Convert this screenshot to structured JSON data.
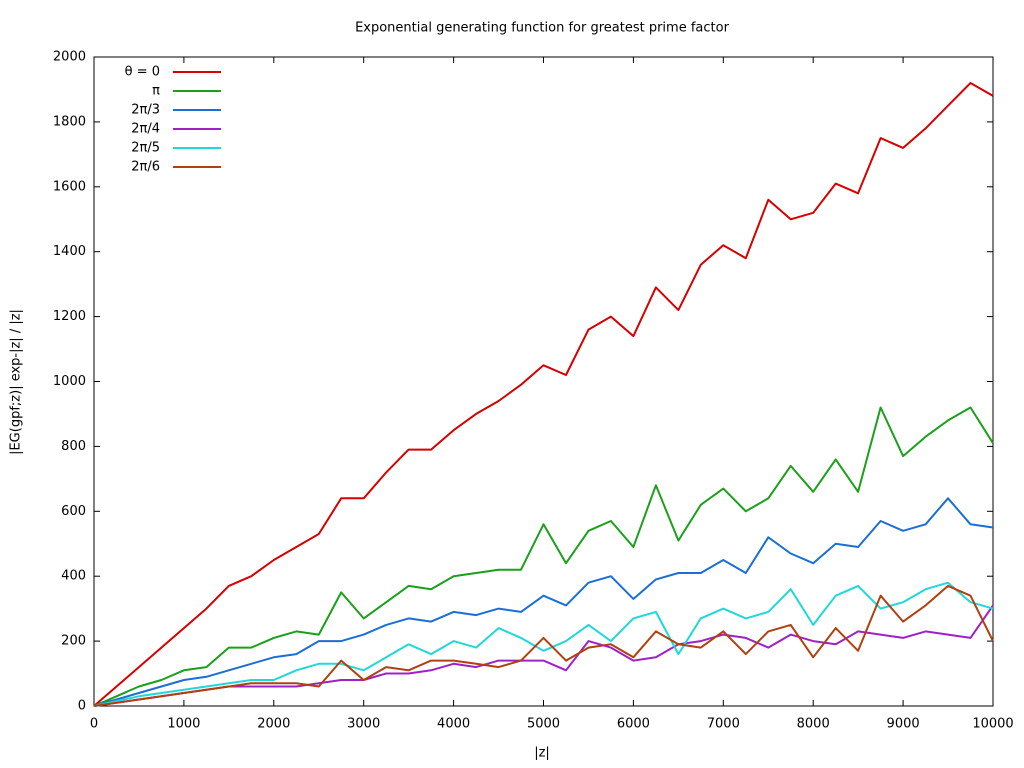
{
  "chart_data": {
    "type": "line",
    "title": "Exponential generating function for greatest prime factor",
    "xlabel": "|z|",
    "ylabel": "|EG(gpf;z)| exp-|z| / |z|",
    "xlim": [
      0,
      10000
    ],
    "ylim": [
      0,
      2000
    ],
    "xticks": [
      0,
      1000,
      2000,
      3000,
      4000,
      5000,
      6000,
      7000,
      8000,
      9000,
      10000
    ],
    "yticks": [
      0,
      200,
      400,
      600,
      800,
      1000,
      1200,
      1400,
      1600,
      1800,
      2000
    ],
    "grid": false,
    "legend": "top-left",
    "x": [
      0,
      250,
      500,
      750,
      1000,
      1250,
      1500,
      1750,
      2000,
      2250,
      2500,
      2750,
      3000,
      3250,
      3500,
      3750,
      4000,
      4250,
      4500,
      4750,
      5000,
      5250,
      5500,
      5750,
      6000,
      6250,
      6500,
      6750,
      7000,
      7250,
      7500,
      7750,
      8000,
      8250,
      8500,
      8750,
      9000,
      9250,
      9500,
      9750,
      10000
    ],
    "series": [
      {
        "name": "θ = 0",
        "color": "#d60000",
        "values": [
          0,
          60,
          120,
          180,
          240,
          300,
          370,
          400,
          450,
          490,
          530,
          640,
          640,
          720,
          790,
          790,
          850,
          900,
          940,
          990,
          1050,
          1020,
          1160,
          1200,
          1140,
          1290,
          1220,
          1360,
          1420,
          1380,
          1560,
          1500,
          1520,
          1610,
          1580,
          1750,
          1720,
          1780,
          1850,
          1920,
          1880
        ]
      },
      {
        "name": "π",
        "color": "#1aa01a",
        "values": [
          0,
          30,
          60,
          80,
          110,
          120,
          180,
          180,
          210,
          230,
          220,
          350,
          270,
          320,
          370,
          360,
          400,
          410,
          420,
          420,
          560,
          440,
          540,
          570,
          490,
          680,
          510,
          620,
          670,
          600,
          640,
          740,
          660,
          760,
          660,
          920,
          770,
          830,
          880,
          920,
          810
        ]
      },
      {
        "name": "2π/3",
        "color": "#1a6fd6",
        "values": [
          0,
          20,
          40,
          60,
          80,
          90,
          110,
          130,
          150,
          160,
          200,
          200,
          220,
          250,
          270,
          260,
          290,
          280,
          300,
          290,
          340,
          310,
          380,
          400,
          330,
          390,
          410,
          410,
          450,
          410,
          520,
          470,
          440,
          500,
          490,
          570,
          540,
          560,
          640,
          560,
          550
        ]
      },
      {
        "name": "2π/4",
        "color": "#a020c8",
        "values": [
          0,
          10,
          20,
          30,
          40,
          50,
          60,
          60,
          60,
          60,
          70,
          80,
          80,
          100,
          100,
          110,
          130,
          120,
          140,
          140,
          140,
          110,
          200,
          180,
          140,
          150,
          190,
          200,
          220,
          210,
          180,
          220,
          200,
          190,
          230,
          220,
          210,
          230,
          220,
          210,
          310
        ]
      },
      {
        "name": "2π/5",
        "color": "#20d8d8",
        "values": [
          0,
          15,
          30,
          40,
          50,
          60,
          70,
          80,
          80,
          110,
          130,
          130,
          110,
          150,
          190,
          160,
          200,
          180,
          240,
          210,
          170,
          200,
          250,
          200,
          270,
          290,
          160,
          270,
          300,
          270,
          290,
          360,
          250,
          340,
          370,
          300,
          320,
          360,
          380,
          320,
          300
        ]
      },
      {
        "name": "2π/6",
        "color": "#b04010",
        "values": [
          0,
          10,
          20,
          30,
          40,
          50,
          60,
          70,
          70,
          70,
          60,
          140,
          80,
          120,
          110,
          140,
          140,
          130,
          120,
          140,
          210,
          140,
          180,
          190,
          150,
          230,
          190,
          180,
          230,
          160,
          230,
          250,
          150,
          240,
          170,
          340,
          260,
          310,
          370,
          340,
          200
        ]
      }
    ]
  }
}
